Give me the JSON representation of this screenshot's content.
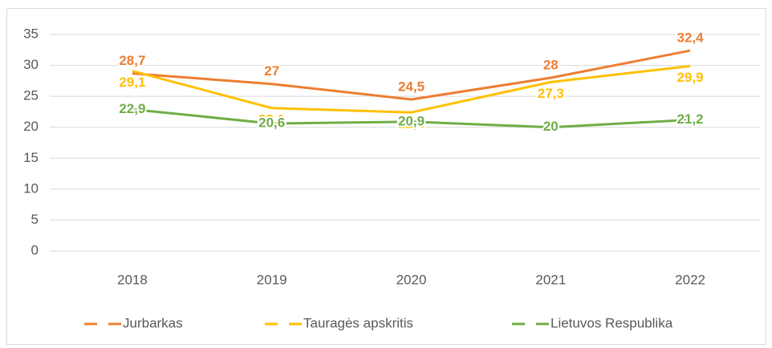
{
  "chart_data": {
    "type": "line",
    "categories": [
      "2018",
      "2019",
      "2020",
      "2021",
      "2022"
    ],
    "series": [
      {
        "name": "Jurbarkas",
        "color": "#ed7d31",
        "values": [
          28.7,
          27,
          24.5,
          28,
          32.4
        ],
        "value_labels": [
          "28,7",
          "27",
          "24,5",
          "28",
          "32,4"
        ]
      },
      {
        "name": "Tauragės apskritis",
        "color": "#ffc000",
        "values": [
          29.1,
          23.1,
          22.4,
          27.3,
          29.9
        ],
        "value_labels": [
          "29,1",
          "23,1",
          "22,4",
          "27,3",
          "29,9"
        ]
      },
      {
        "name": "Lietuvos Respublika",
        "color": "#70ad47",
        "values": [
          22.9,
          20.6,
          20.9,
          20,
          21.2
        ],
        "value_labels": [
          "22,9",
          "20,6",
          "20,9",
          "20",
          "21,2"
        ]
      }
    ],
    "ylim": [
      0,
      35
    ],
    "yticks": [
      0,
      5,
      10,
      15,
      20,
      25,
      30,
      35
    ],
    "grid": true,
    "legend": "bottom"
  }
}
